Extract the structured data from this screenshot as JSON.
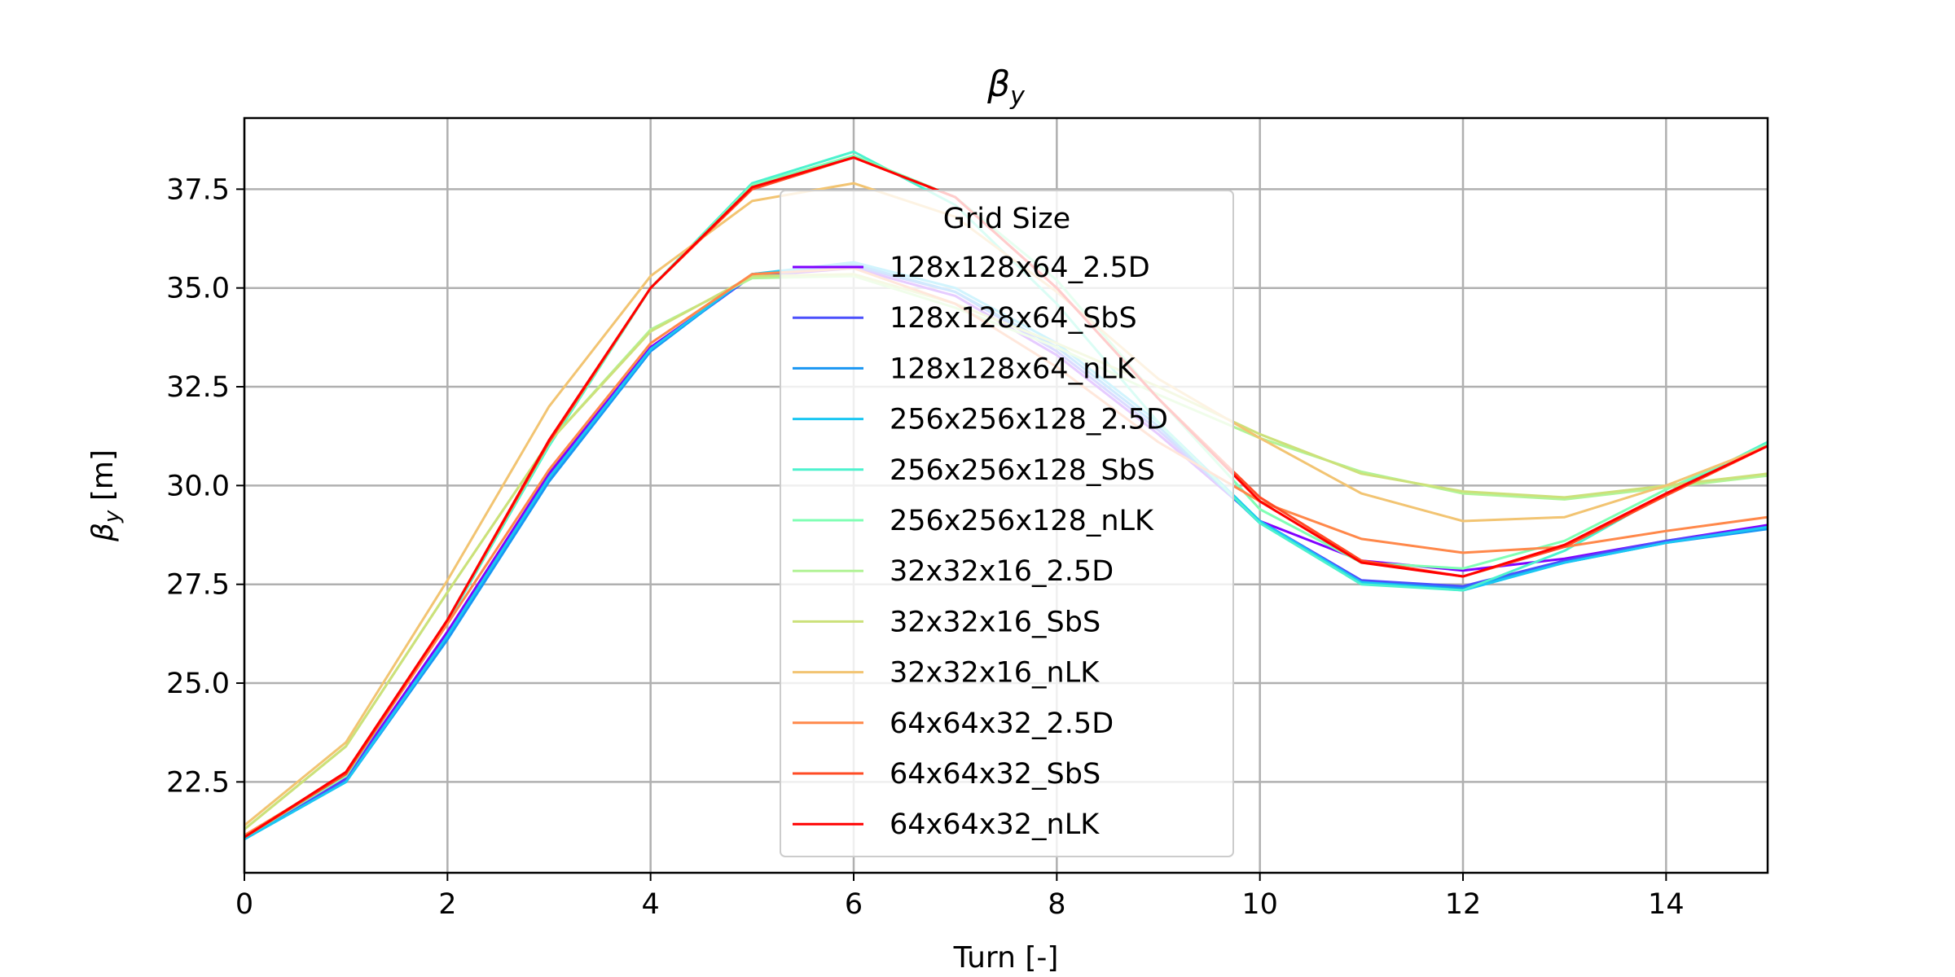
{
  "chart_data": {
    "type": "line",
    "title": "β_y",
    "title_main": "β",
    "title_sub": "y",
    "xlabel": "Turn [-]",
    "ylabel": "β_y [m]",
    "ylabel_main": "β",
    "ylabel_sub": "y",
    "ylabel_unit": " [m]",
    "xlim": [
      0,
      15
    ],
    "ylim": [
      20.2,
      39.3
    ],
    "xticks": [
      0,
      2,
      4,
      6,
      8,
      10,
      12,
      14
    ],
    "xtick_labels": [
      "0",
      "2",
      "4",
      "6",
      "8",
      "10",
      "12",
      "14"
    ],
    "yticks": [
      22.5,
      25.0,
      27.5,
      30.0,
      32.5,
      35.0,
      37.5
    ],
    "ytick_labels": [
      "22.5",
      "25.0",
      "27.5",
      "30.0",
      "32.5",
      "35.0",
      "37.5"
    ],
    "grid": true,
    "legend_title": "Grid Size",
    "legend_position": "center",
    "x": [
      0,
      1,
      2,
      3,
      4,
      5,
      6,
      7,
      8,
      9,
      10,
      11,
      12,
      13,
      14,
      15
    ],
    "series": [
      {
        "name": "128x128x64_2.5D",
        "color": "#8000ff",
        "values": [
          21.1,
          22.6,
          26.3,
          30.3,
          33.5,
          35.3,
          35.5,
          34.8,
          33.3,
          31.3,
          29.1,
          28.1,
          27.85,
          28.15,
          28.6,
          29.0
        ]
      },
      {
        "name": "128x128x64_SbS",
        "color": "#4c50fc",
        "values": [
          21.05,
          22.55,
          26.2,
          30.2,
          33.45,
          35.3,
          35.55,
          34.9,
          33.4,
          31.4,
          29.1,
          27.6,
          27.45,
          28.1,
          28.6,
          28.95
        ]
      },
      {
        "name": "128x128x64_nLK",
        "color": "#1996f3",
        "values": [
          21.05,
          22.5,
          26.1,
          30.1,
          33.4,
          35.35,
          35.6,
          34.9,
          33.5,
          31.5,
          29.05,
          27.55,
          27.4,
          28.05,
          28.55,
          28.9
        ]
      },
      {
        "name": "256x256x128_2.5D",
        "color": "#1ac7f2",
        "values": [
          21.05,
          22.5,
          26.2,
          30.2,
          33.45,
          35.35,
          35.65,
          35.0,
          33.6,
          31.6,
          29.1,
          27.55,
          27.35,
          28.05,
          28.55,
          28.95
        ]
      },
      {
        "name": "256x256x128_SbS",
        "color": "#4cf2ce",
        "values": [
          21.1,
          22.65,
          26.55,
          31.0,
          35.0,
          37.65,
          38.45,
          37.1,
          34.6,
          31.6,
          29.05,
          27.5,
          27.35,
          28.35,
          29.8,
          31.1
        ]
      },
      {
        "name": "256x256x128_nLK",
        "color": "#80ffb4",
        "values": [
          21.1,
          22.65,
          26.6,
          31.05,
          35.0,
          37.6,
          38.35,
          37.3,
          35.2,
          32.2,
          29.4,
          28.05,
          27.9,
          28.6,
          29.9,
          31.05
        ]
      },
      {
        "name": "32x32x16_2.5D",
        "color": "#b2f396",
        "values": [
          21.3,
          23.4,
          27.3,
          31.1,
          33.95,
          35.25,
          35.3,
          34.5,
          33.5,
          32.3,
          31.2,
          30.35,
          29.8,
          29.65,
          29.95,
          30.25
        ]
      },
      {
        "name": "32x32x16_SbS",
        "color": "#cce17a",
        "values": [
          21.3,
          23.4,
          27.3,
          31.1,
          33.9,
          35.3,
          35.35,
          34.6,
          33.6,
          32.5,
          31.3,
          30.3,
          29.85,
          29.7,
          30.0,
          30.3
        ]
      },
      {
        "name": "32x32x16_nLK",
        "color": "#f2c472",
        "values": [
          21.4,
          23.5,
          27.6,
          32.0,
          35.3,
          37.2,
          37.65,
          36.8,
          34.9,
          32.7,
          31.2,
          29.8,
          29.1,
          29.2,
          30.0,
          31.0
        ]
      },
      {
        "name": "64x64x32_2.5D",
        "color": "#ff884a",
        "values": [
          21.15,
          22.7,
          26.5,
          30.4,
          33.6,
          35.35,
          35.5,
          34.6,
          33.0,
          31.1,
          29.6,
          28.65,
          28.3,
          28.45,
          28.85,
          29.2
        ]
      },
      {
        "name": "64x64x32_SbS",
        "color": "#ff4c26",
        "values": [
          21.1,
          22.7,
          26.6,
          31.1,
          35.0,
          37.5,
          38.3,
          37.3,
          35.0,
          32.2,
          29.7,
          28.1,
          27.7,
          28.45,
          29.75,
          31.0
        ]
      },
      {
        "name": "64x64x32_nLK",
        "color": "#ff0000",
        "values": [
          21.1,
          22.75,
          26.6,
          31.15,
          35.0,
          37.55,
          38.3,
          37.3,
          35.0,
          32.2,
          29.6,
          28.05,
          27.7,
          28.5,
          29.8,
          31.0
        ]
      }
    ]
  }
}
